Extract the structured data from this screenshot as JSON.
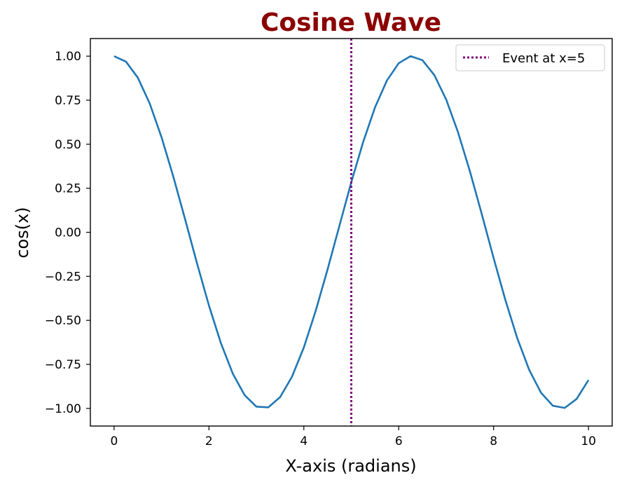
{
  "chart_data": {
    "type": "line",
    "title": "Cosine Wave",
    "title_color": "#8b0000",
    "xlabel": "X-axis (radians)",
    "ylabel": "cos(x)",
    "xlim": [
      -0.5,
      10.5
    ],
    "ylim": [
      -1.1,
      1.1
    ],
    "xticks": [
      0,
      2,
      4,
      6,
      8,
      10
    ],
    "xtick_labels": [
      "0",
      "2",
      "4",
      "6",
      "8",
      "10"
    ],
    "yticks": [
      1.0,
      0.75,
      0.5,
      0.25,
      0.0,
      -0.25,
      -0.5,
      -0.75,
      -1.0
    ],
    "ytick_labels": [
      "1.00",
      "0.75",
      "0.50",
      "0.25",
      "0.00",
      "−0.25",
      "−0.50",
      "−0.75",
      "−1.00"
    ],
    "grid": false,
    "legend": {
      "placement": "top-right",
      "entries": [
        "Event at x=5"
      ]
    },
    "series": [
      {
        "color": "#1f77b4",
        "x": [
          0,
          0.25,
          0.5,
          0.75,
          1,
          1.25,
          1.5,
          1.75,
          2,
          2.25,
          2.5,
          2.75,
          3,
          3.25,
          3.5,
          3.75,
          4,
          4.25,
          4.5,
          4.75,
          5,
          5.25,
          5.5,
          5.75,
          6,
          6.25,
          6.5,
          6.75,
          7,
          7.25,
          7.5,
          7.75,
          8,
          8.25,
          8.5,
          8.75,
          9,
          9.25,
          9.5,
          9.75,
          10
        ],
        "y": [
          1,
          0.969,
          0.878,
          0.732,
          0.54,
          0.315,
          0.071,
          -0.178,
          -0.416,
          -0.628,
          -0.801,
          -0.924,
          -0.99,
          -0.994,
          -0.936,
          -0.82,
          -0.654,
          -0.446,
          -0.211,
          0.037,
          0.284,
          0.512,
          0.709,
          0.861,
          0.96,
          1,
          0.977,
          0.893,
          0.754,
          0.568,
          0.347,
          0.104,
          -0.146,
          -0.386,
          -0.602,
          -0.781,
          -0.911,
          -0.985,
          -0.997,
          -0.946,
          -0.839
        ]
      }
    ],
    "vlines": [
      {
        "x": 5,
        "label": "Event at x=5",
        "color": "#800080",
        "style": "dotted"
      }
    ]
  }
}
